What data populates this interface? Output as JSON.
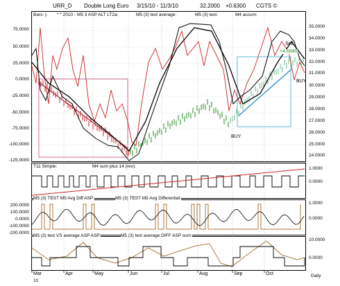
{
  "header": {
    "symbol": "URR_D",
    "name": "Double Long Euro",
    "date_range": "3/15/10 - 11/3/10",
    "price": "32.2000",
    "change": "+0.6300",
    "brand": "CGTS ©"
  },
  "panels": {
    "main": {
      "legend": [
        "Bars: |-",
        "* * 2010 - M5 3 ASP ALT LT2a:",
        "M5 (3) test average:",
        "M5 (3) test:",
        "M4 accum:"
      ],
      "left_axis": [
        "75.0000",
        "50.0000",
        "25.0000",
        "0.0000",
        "-25.0000",
        "-50.0000",
        "-75.0000",
        "-100.0000",
        "-125.0000"
      ],
      "right_axis": [
        "35.0000",
        "34.0000",
        "33.0000",
        "32.0000",
        "31.0000",
        "30.0000",
        "29.0000",
        "28.0000",
        "27.0000",
        "26.0000",
        "25.0000",
        "24.0000"
      ],
      "annotations": {
        "sell": "Sell",
        "gain": "+4.6840",
        "buy_bottom": "BUY",
        "buy_right": "BUY"
      }
    },
    "p2": {
      "legend": [
        "T11 Simple:",
        "M4 sum plus 14 (rev):"
      ],
      "right_axis": [
        "1.0000",
        "0.0000"
      ]
    },
    "p3": {
      "legend": [
        "M5 (3) TEST M5 Avg Diff ASP:",
        "M5 (3) TEST M5 Avg Differential:"
      ],
      "left_axis": [
        "200.0000",
        "100.0000",
        "0.0000",
        "-100.0000",
        "-200.0000"
      ],
      "right_axis": [
        "1.0000",
        "0.0000"
      ]
    },
    "p4": {
      "legend": [
        "M5 (3) test VS average ASP ASP:",
        "M5 (3) test average DIFF ASP sum:"
      ],
      "right_axis": [
        "10.0000",
        "0.0000"
      ]
    }
  },
  "x_axis": {
    "months": [
      "Mar",
      "Apr",
      "May",
      "Jun",
      "Jul",
      "Aug",
      "Sep",
      "Oct"
    ],
    "year": "10",
    "period": "Daily"
  },
  "colors": {
    "red_series": "#cc2222",
    "black_series": "#000000",
    "bars_down": "#cc2222",
    "bars_up": "#228b22",
    "trend_down": "#a0223a",
    "trend_up": "#2a8fd0",
    "box_down": "#d86a9a",
    "box_up": "#5ab8d0",
    "osc_brown": "#a87a3c"
  }
}
